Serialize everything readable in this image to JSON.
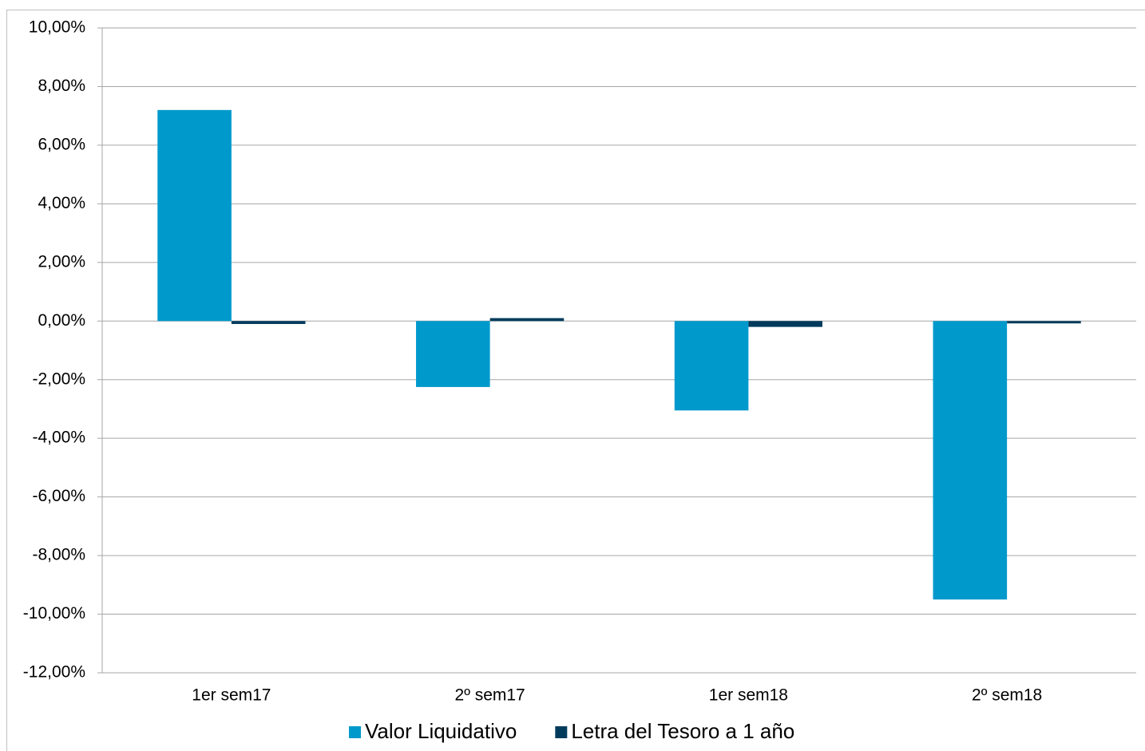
{
  "chart_data": {
    "type": "bar",
    "categories": [
      "1er sem17",
      "2º sem17",
      "1er sem18",
      "2º sem18"
    ],
    "series": [
      {
        "name": "Valor Liquidativo",
        "color": "#0099cc",
        "values": [
          7.2,
          -2.25,
          -3.05,
          -9.5
        ]
      },
      {
        "name": "Letra del Tesoro a 1 año",
        "color": "#003b5c",
        "values": [
          -0.1,
          0.1,
          -0.2,
          -0.08
        ]
      }
    ],
    "ylim": [
      -12,
      10
    ],
    "yticks": [
      {
        "value": -12,
        "label": "-12,00%"
      },
      {
        "value": -10,
        "label": "-10,00%"
      },
      {
        "value": -8,
        "label": "-8,00%"
      },
      {
        "value": -6,
        "label": "-6,00%"
      },
      {
        "value": -4,
        "label": "-4,00%"
      },
      {
        "value": -2,
        "label": "-2,00%"
      },
      {
        "value": 0,
        "label": "0,00%"
      },
      {
        "value": 2,
        "label": "2,00%"
      },
      {
        "value": 4,
        "label": "4,00%"
      },
      {
        "value": 6,
        "label": "6,00%"
      },
      {
        "value": 8,
        "label": "8,00%"
      },
      {
        "value": 10,
        "label": "10,00%"
      }
    ],
    "grid": true,
    "legend": "bottom"
  }
}
